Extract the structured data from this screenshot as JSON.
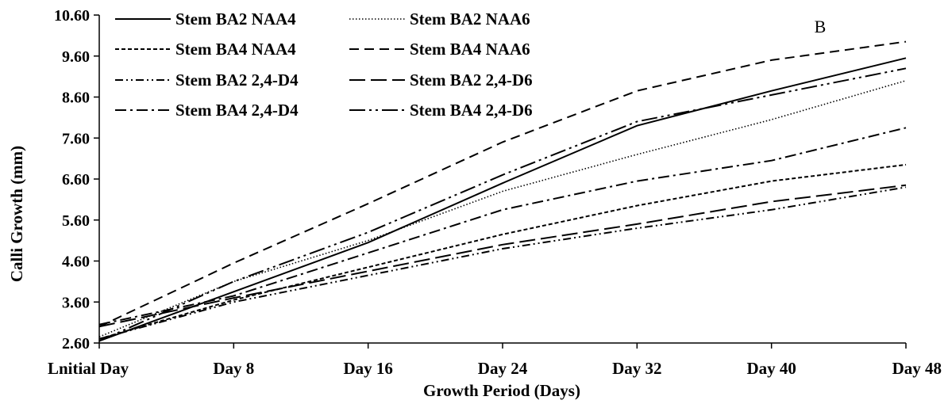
{
  "chart_data": {
    "type": "line",
    "panel_label": "B",
    "xlabel": "Growth Period (Days)",
    "ylabel": "Calli Growth (mm)",
    "categories": [
      "Lnitial Day",
      "Day 8",
      "Day 16",
      "Day 24",
      "Day 32",
      "Day 40",
      "Day 48"
    ],
    "y_ticks": [
      "2.60",
      "3.60",
      "4.60",
      "5.60",
      "6.60",
      "7.60",
      "8.60",
      "9.60",
      "10.60"
    ],
    "ylim": [
      2.6,
      10.6
    ],
    "grid": false,
    "legend_position": "top-left",
    "series": [
      {
        "name": "Stem BA2 NAA4",
        "dash": "solid",
        "values": [
          2.65,
          3.85,
          5.05,
          6.5,
          7.9,
          8.75,
          9.55
        ]
      },
      {
        "name": "Stem BA2 NAA6",
        "dash": "dotted",
        "values": [
          2.75,
          4.1,
          5.1,
          6.3,
          7.2,
          8.05,
          9.0
        ]
      },
      {
        "name": "Stem BA4 NAA4",
        "dash": "short-dash",
        "values": [
          2.7,
          3.65,
          4.45,
          5.25,
          5.95,
          6.55,
          6.95
        ]
      },
      {
        "name": "Stem BA4 NAA6",
        "dash": "dash",
        "values": [
          3.0,
          4.55,
          6.0,
          7.5,
          8.75,
          9.5,
          9.95
        ]
      },
      {
        "name": "Stem BA2 2,4-D4",
        "dash": "dash-dot-dot",
        "values": [
          2.7,
          3.6,
          4.25,
          4.9,
          5.4,
          5.85,
          6.4
        ]
      },
      {
        "name": "Stem BA2 2,4-D6",
        "dash": "long-dash",
        "values": [
          3.0,
          3.7,
          4.35,
          5.0,
          5.5,
          6.05,
          6.45
        ]
      },
      {
        "name": "Stem BA4 2,4-D4",
        "dash": "dash-dot",
        "values": [
          3.05,
          3.75,
          4.8,
          5.85,
          6.55,
          7.05,
          7.85
        ]
      },
      {
        "name": "Stem BA4 2,4-D6",
        "dash": "long-dash-dot-dot",
        "values": [
          2.65,
          4.1,
          5.3,
          6.7,
          8.0,
          8.65,
          9.3
        ]
      }
    ]
  }
}
